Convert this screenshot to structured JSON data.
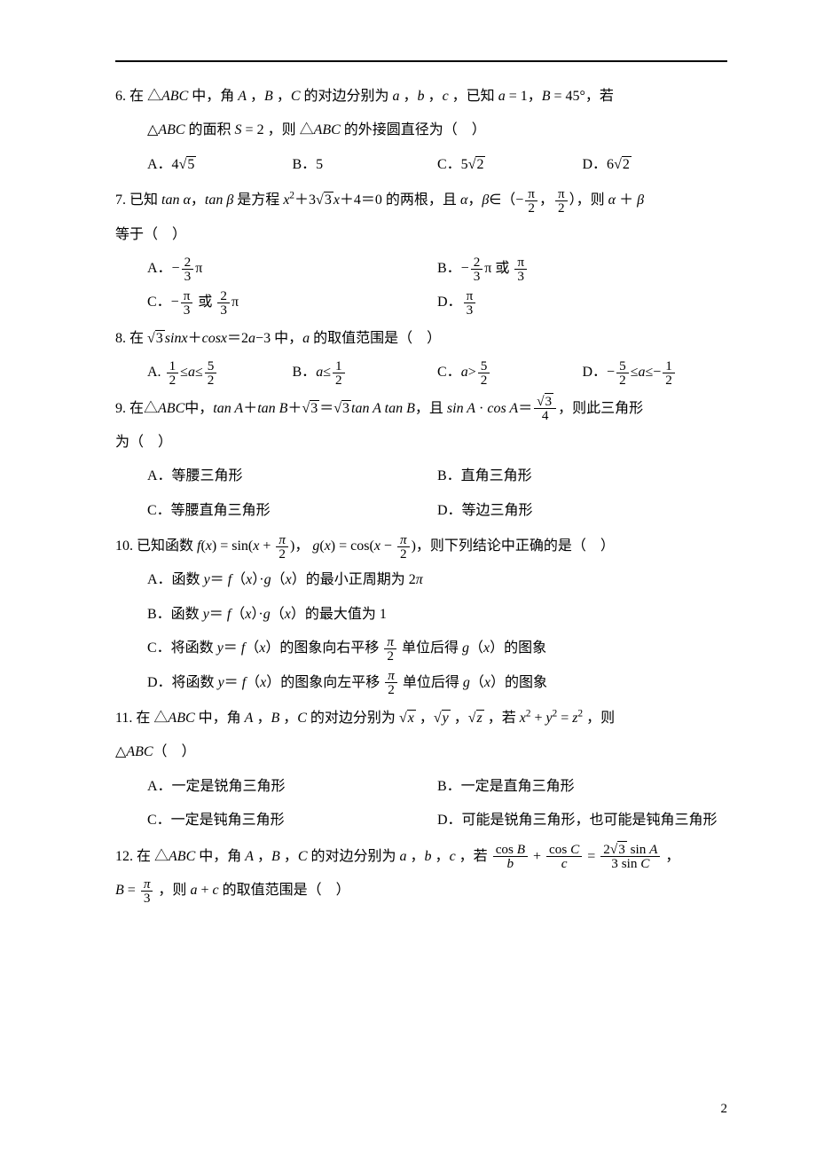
{
  "page_number": "2",
  "questions": [
    {
      "num": "6.",
      "line1": "在 △<span class='i'>ABC</span> 中，角 <span class='i'>A</span> ，<span class='i'>B</span> ，<span class='i'>C</span> 的对边分别为 <span class='i'>a</span> ，<span class='i'>b</span> ，<span class='i'>c</span> ，已知 <span class='i'>a</span> = 1，<span class='i'>B</span> = 45°，若",
      "line2": "△<span class='i'>ABC</span> 的面积 <span class='i'>S</span> = 2 ，则 △<span class='i'>ABC</span> 的外接圆直径为（&nbsp;&nbsp;&nbsp;&nbsp;）",
      "options_layout": "opt4",
      "options": [
        "A．4<span class='sqrt'>√<span class='rad'>5</span></span>",
        "B．5",
        "C．5<span class='sqrt'>√<span class='rad'>2</span></span>",
        "D．6<span class='sqrt'>√<span class='rad'>2</span></span>"
      ]
    },
    {
      "num": "7.",
      "line1": "已知 <span class='i'>tan α</span>，<span class='i'>tan β</span> 是方程 <span class='i'>x</span><span class='sup'>2</span>＋3<span class='sqrt'>√<span class='rad'>3</span></span><span class='i'>x</span>＋4＝0 的两根，且 <span class='i'>α</span>，<span class='i'>β</span>∈（−<span class='frac'><span class='fn'>π</span><span class='fd'>2</span></span>，<span class='frac'><span class='fn'>π</span><span class='fd'>2</span></span>），则 <span class='i'>α</span> ＋ <span class='i'>β</span>",
      "line2": "等于（&nbsp;&nbsp;&nbsp;&nbsp;）",
      "options_layout": "opt2",
      "options": [
        "A．−<span class='frac'><span class='fn'>2</span><span class='fd'>3</span></span>π",
        "B．−<span class='frac'><span class='fn'>2</span><span class='fd'>3</span></span>π 或 <span class='frac'><span class='fn'>π</span><span class='fd'>3</span></span>",
        "C．−<span class='frac'><span class='fn'>π</span><span class='fd'>3</span></span> 或 <span class='frac'><span class='fn'>2</span><span class='fd'>3</span></span>π",
        "D．<span class='frac'><span class='fn'>π</span><span class='fd'>3</span></span>"
      ]
    },
    {
      "num": "8.",
      "line1": "在 <span class='sqrt'>√<span class='rad'>3</span></span><span class='i'>sinx</span>＋<span class='i'>cosx</span>＝2<span class='i'>a</span>−3 中，<span class='i'>a</span> 的取值范围是（&nbsp;&nbsp;&nbsp;&nbsp;）",
      "options_layout": "opt4",
      "options": [
        "A. <span class='frac'><span class='fn'>1</span><span class='fd'>2</span></span>≤<span class='i'>a</span>≤<span class='frac'><span class='fn'>5</span><span class='fd'>2</span></span>",
        "B．<span class='i'>a</span>≤<span class='frac'><span class='fn'>1</span><span class='fd'>2</span></span>",
        "C．<span class='i'>a</span>&gt;<span class='frac'><span class='fn'>5</span><span class='fd'>2</span></span>",
        "D．−<span class='frac'><span class='fn'>5</span><span class='fd'>2</span></span>≤<span class='i'>a</span>≤−<span class='frac'><span class='fn'>1</span><span class='fd'>2</span></span>"
      ]
    },
    {
      "num": "9.",
      "line1": "在△<span class='i'>ABC</span>中，<span class='i'>tan A</span>＋<span class='i'>tan B</span>＋<span class='sqrt'>√<span class='rad'>3</span></span>＝<span class='sqrt'>√<span class='rad'>3</span></span><span class='i'>tan A tan B</span>，且 <span class='i'>sin A</span> · <span class='i'>cos A</span>＝<span class='frac'><span class='fn'><span class='sqrt'>√<span class='rad'>3</span></span></span><span class='fd'>4</span></span>，则此三角形",
      "line2": "为（&nbsp;&nbsp;&nbsp;&nbsp;）",
      "options_layout": "opt2",
      "options": [
        "A．等腰三角形",
        "B．直角三角形",
        "C．等腰直角三角形",
        "D．等边三角形"
      ]
    },
    {
      "num": "10.",
      "line1": "已知函数 <span class='i'>f</span>(<span class='i'>x</span>) = sin(<span class='i'>x</span> + <span class='frac'><span class='fn'><span class='i'>π</span></span><span class='fd'>2</span></span>)，&nbsp;<span class='i'>g</span>(<span class='i'>x</span>) = cos(<span class='i'>x</span> − <span class='frac'><span class='fn'><span class='i'>π</span></span><span class='fd'>2</span></span>)，则下列结论中正确的是（&nbsp;&nbsp;&nbsp;&nbsp;）",
      "options_layout": "opt1",
      "options": [
        "A．函数 <span class='i'>y</span>＝ <span class='i'>f</span>（<span class='i'>x</span>）·<span class='i'>g</span>（<span class='i'>x</span>）的最小正周期为 2<span class='i'>π</span>",
        "B．函数 <span class='i'>y</span>＝ <span class='i'>f</span>（<span class='i'>x</span>）·<span class='i'>g</span>（<span class='i'>x</span>）的最大值为 1",
        "C．将函数 <span class='i'>y</span>＝ <span class='i'>f</span>（<span class='i'>x</span>）的图象向右平移 <span class='frac'><span class='fn'><span class='i'>π</span></span><span class='fd'>2</span></span> 单位后得 <span class='i'>g</span>（<span class='i'>x</span>）的图象",
        "D．将函数 <span class='i'>y</span>＝ <span class='i'>f</span>（<span class='i'>x</span>）的图象向左平移 <span class='frac'><span class='fn'><span class='i'>π</span></span><span class='fd'>2</span></span> 单位后得 <span class='i'>g</span>（<span class='i'>x</span>）的图象"
      ]
    },
    {
      "num": "11.",
      "line1": "在 △<span class='i'>ABC</span> 中，角 <span class='i'>A</span> ，<span class='i'>B</span> ，<span class='i'>C</span> 的对边分别为 <span class='sqrt'>√<span class='rad'><span class='i'>x</span></span></span> ，<span class='sqrt'>√<span class='rad'><span class='i'>y</span></span></span> ，<span class='sqrt'>√<span class='rad'><span class='i'>z</span></span></span> ，若 <span class='i'>x</span><span class='sup'>2</span> + <span class='i'>y</span><span class='sup'>2</span> = <span class='i'>z</span><span class='sup'>2</span> ，则",
      "line2": "△<span class='i'>ABC</span>（&nbsp;&nbsp;&nbsp;&nbsp;）",
      "options_layout": "opt2",
      "options": [
        "A．一定是锐角三角形",
        "B．一定是直角三角形",
        "C．一定是钝角三角形",
        "D．可能是锐角三角形，也可能是钝角三角形"
      ]
    },
    {
      "num": "12.",
      "line1": "在 △<span class='i'>ABC</span> 中，角 <span class='i'>A</span> ，<span class='i'>B</span> ，<span class='i'>C</span> 的对边分别为 <span class='i'>a</span> ，<span class='i'>b</span> ，<span class='i'>c</span> ，若 <span class='frac'><span class='fn'>cos <span class='i'>B</span></span><span class='fd'><span class='i'>b</span></span></span> + <span class='frac'><span class='fn'>cos <span class='i'>C</span></span><span class='fd'><span class='i'>c</span></span></span> = <span class='frac'><span class='fn'>2<span class='sqrt'>√<span class='rad'>3</span></span> sin <span class='i'>A</span></span><span class='fd'>3 sin <span class='i'>C</span></span></span> ，",
      "line2": "<span class='i'>B</span> = <span class='frac'><span class='fn'><span class='i'>π</span></span><span class='fd'>3</span></span> ，则 <span class='i'>a</span> + <span class='i'>c</span> 的取值范围是（&nbsp;&nbsp;&nbsp;&nbsp;）"
    }
  ]
}
